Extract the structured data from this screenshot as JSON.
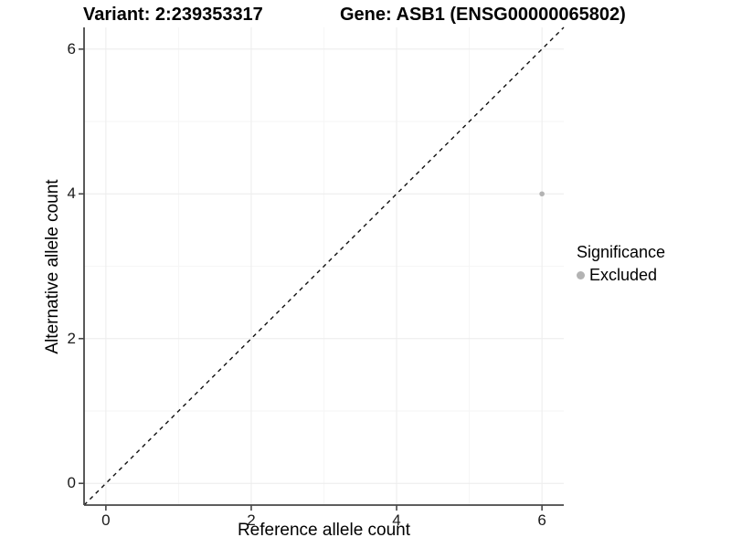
{
  "chart_data": {
    "type": "scatter",
    "title_left": "Variant: 2:239353317",
    "title_right": "Gene: ASB1 (ENSG00000065802)",
    "xlabel": "Reference allele count",
    "ylabel": "Alternative allele count",
    "xlim": [
      -0.3,
      6.3
    ],
    "ylim": [
      -0.3,
      6.3
    ],
    "xticks": [
      0,
      2,
      4,
      6
    ],
    "yticks": [
      0,
      2,
      4,
      6
    ],
    "grid": "major+minor",
    "legend_position": "right",
    "reference_line": {
      "type": "identity",
      "slope": 1,
      "intercept": 0,
      "style": "dashed",
      "color": "#111111"
    },
    "points": [
      {
        "x": 6,
        "y": 4,
        "significance": "Excluded"
      }
    ],
    "legend": {
      "title": "Significance",
      "entries": [
        {
          "label": "Excluded",
          "color": "#b3b3b3"
        }
      ]
    },
    "colors": {
      "background": "#ffffff",
      "axis_line": "#474747",
      "grid_major": "#ececec",
      "grid_minor": "#f6f6f6",
      "tick_text": "#1a1a1a"
    }
  }
}
